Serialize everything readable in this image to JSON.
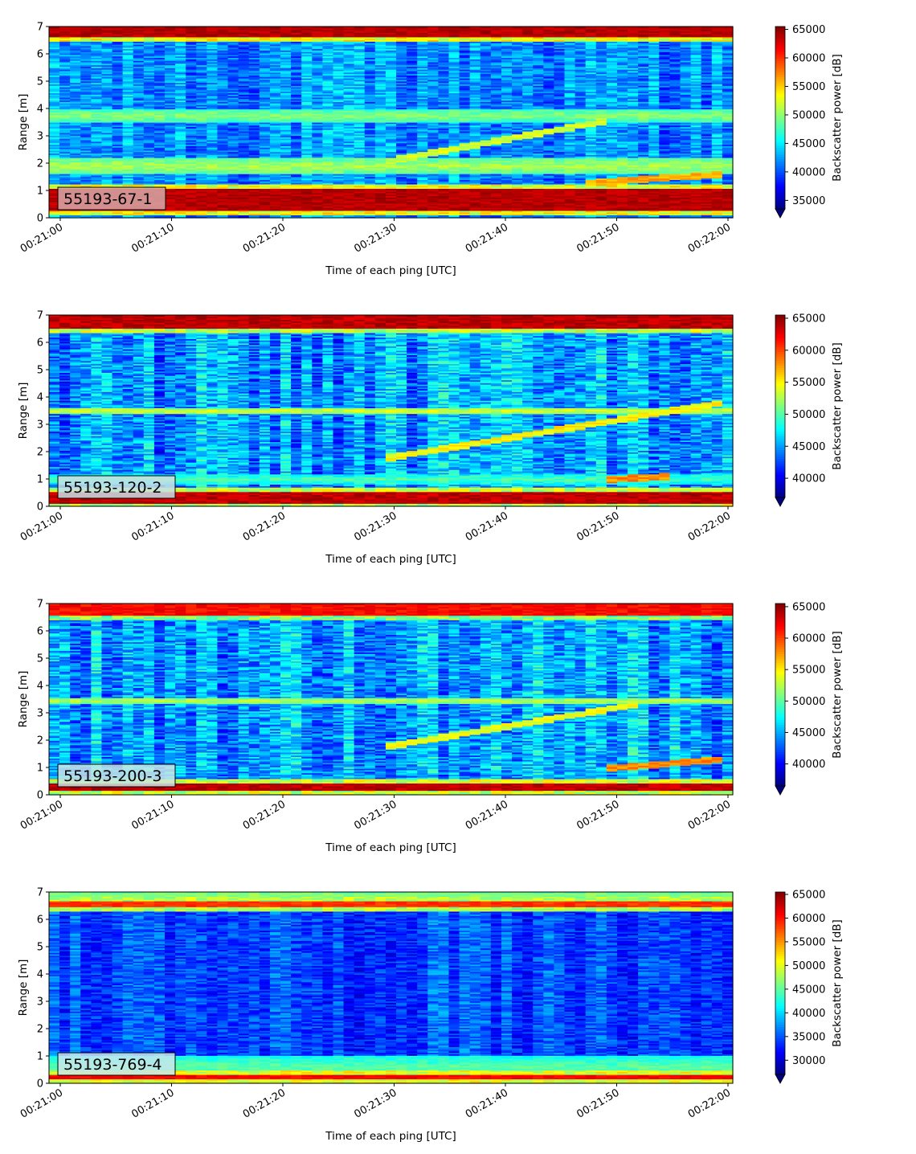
{
  "figure": {
    "time_tick_labels": [
      "00:21:00",
      "00:21:10",
      "00:21:20",
      "00:21:30",
      "00:21:40",
      "00:21:50",
      "00:22:00"
    ],
    "xlabel": "Time of each ping [UTC]",
    "ylabel": "Range [m]",
    "colorbar_label": "Backscatter power [dB]",
    "colormap": "jet",
    "colormap_stops": [
      "#00007f",
      "#0000ff",
      "#007fff",
      "#00ffff",
      "#7fff7f",
      "#ffff00",
      "#ff7f00",
      "#ff0000",
      "#7f0000"
    ]
  },
  "chart_data": [
    {
      "type": "heatmap",
      "panel_label": "55193-67-1",
      "label_box_color": "#d8a8a8",
      "x_range_seconds": [
        0,
        60
      ],
      "ylim": [
        0,
        7
      ],
      "yticks": [
        0,
        1,
        2,
        3,
        4,
        5,
        6,
        7
      ],
      "color_range": [
        33500,
        65500
      ],
      "colorbar_ticks": [
        35000,
        40000,
        45000,
        50000,
        55000,
        60000,
        65000
      ],
      "colorbar_extend": "min",
      "background_level": 42000,
      "noise_amplitude": 3500,
      "strong_bands": [
        {
          "range_m": [
            0.25,
            1.1
          ],
          "value": 65000
        },
        {
          "range_m": [
            6.6,
            7.0
          ],
          "value": 65000
        }
      ],
      "horizontal_features": [
        {
          "range_m": 3.75,
          "value": 50000,
          "width_m": 0.25
        },
        {
          "range_m": 1.9,
          "value": 51000,
          "width_m": 0.3
        }
      ],
      "sloped_features": [
        {
          "start_s": 30,
          "end_s": 50,
          "range_start_m": 2.1,
          "range_end_m": 3.6,
          "value": 52000
        },
        {
          "start_s": 48,
          "end_s": 60,
          "range_start_m": 1.3,
          "range_end_m": 1.6,
          "value": 56000
        }
      ]
    },
    {
      "type": "heatmap",
      "panel_label": "55193-120-2",
      "label_box_color": "#c8dfe6",
      "x_range_seconds": [
        0,
        60
      ],
      "ylim": [
        0,
        7
      ],
      "yticks": [
        0,
        1,
        2,
        3,
        4,
        5,
        6,
        7
      ],
      "color_range": [
        37000,
        65500
      ],
      "colorbar_ticks": [
        40000,
        45000,
        50000,
        55000,
        60000,
        65000
      ],
      "colorbar_extend": "min",
      "background_level": 45000,
      "noise_amplitude": 4000,
      "strong_bands": [
        {
          "range_m": [
            0.1,
            0.55
          ],
          "value": 65000
        },
        {
          "range_m": [
            6.5,
            7.0
          ],
          "value": 65000
        }
      ],
      "horizontal_features": [
        {
          "range_m": 3.5,
          "value": 54000,
          "width_m": 0.12
        },
        {
          "range_m": 1.0,
          "value": 50000,
          "width_m": 0.2
        }
      ],
      "sloped_features": [
        {
          "start_s": 30,
          "end_s": 60,
          "range_start_m": 1.8,
          "range_end_m": 3.8,
          "value": 55000
        },
        {
          "start_s": 50,
          "end_s": 55,
          "range_start_m": 1.0,
          "range_end_m": 1.1,
          "value": 58000
        }
      ]
    },
    {
      "type": "heatmap",
      "panel_label": "55193-200-3",
      "label_box_color": "#c8e6e6",
      "x_range_seconds": [
        0,
        60
      ],
      "ylim": [
        0,
        7
      ],
      "yticks": [
        0,
        1,
        2,
        3,
        4,
        5,
        6,
        7
      ],
      "color_range": [
        36500,
        65500
      ],
      "colorbar_ticks": [
        40000,
        45000,
        50000,
        55000,
        60000,
        65000
      ],
      "colorbar_extend": "min",
      "background_level": 45000,
      "noise_amplitude": 4000,
      "strong_bands": [
        {
          "range_m": [
            0.15,
            0.45
          ],
          "value": 65000
        },
        {
          "range_m": [
            6.55,
            7.0
          ],
          "value": 63000
        }
      ],
      "horizontal_features": [
        {
          "range_m": 3.45,
          "value": 53000,
          "width_m": 0.12
        }
      ],
      "sloped_features": [
        {
          "start_s": 30,
          "end_s": 52,
          "range_start_m": 1.8,
          "range_end_m": 3.3,
          "value": 54000
        },
        {
          "start_s": 50,
          "end_s": 60,
          "range_start_m": 1.0,
          "range_end_m": 1.3,
          "value": 58000
        }
      ]
    },
    {
      "type": "heatmap",
      "panel_label": "55193-769-4",
      "label_box_color": "#c8e6ec",
      "x_range_seconds": [
        0,
        60
      ],
      "ylim": [
        0,
        7
      ],
      "yticks": [
        0,
        1,
        2,
        3,
        4,
        5,
        6,
        7
      ],
      "color_range": [
        27000,
        65500
      ],
      "colorbar_ticks": [
        30000,
        35000,
        40000,
        45000,
        50000,
        55000,
        60000,
        65000
      ],
      "colorbar_extend": "min",
      "background_level": 34500,
      "noise_amplitude": 3500,
      "strong_bands": [
        {
          "range_m": [
            0.15,
            0.35
          ],
          "value": 62000
        },
        {
          "range_m": [
            6.45,
            6.7
          ],
          "value": 60000
        }
      ],
      "horizontal_features": [
        {
          "range_m": 0.6,
          "value": 45000,
          "width_m": 0.4
        },
        {
          "range_m": 6.9,
          "value": 47000,
          "width_m": 0.15
        }
      ],
      "sloped_features": []
    }
  ]
}
